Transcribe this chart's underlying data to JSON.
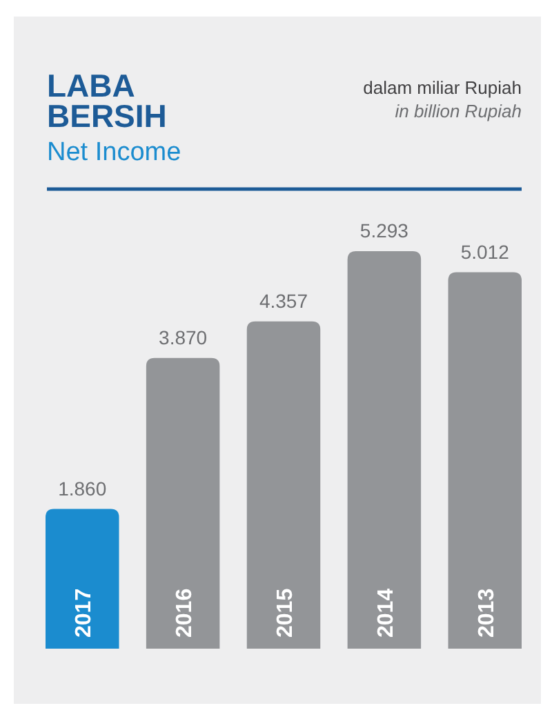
{
  "chart_data": {
    "type": "bar",
    "title": "LABA BERSIH",
    "subtitle": "Net Income",
    "annotations": [
      "dalam miliar Rupiah",
      "in billion Rupiah"
    ],
    "categories": [
      "2017",
      "2016",
      "2015",
      "2014",
      "2013"
    ],
    "values": [
      1.86,
      3.87,
      4.357,
      5.293,
      5.012
    ],
    "colors": [
      "#1b8ccf",
      "#939598",
      "#939598",
      "#939598",
      "#939598"
    ],
    "value_labels": [
      "1.860",
      "3.870",
      "4.357",
      "5.293",
      "5.012"
    ]
  }
}
